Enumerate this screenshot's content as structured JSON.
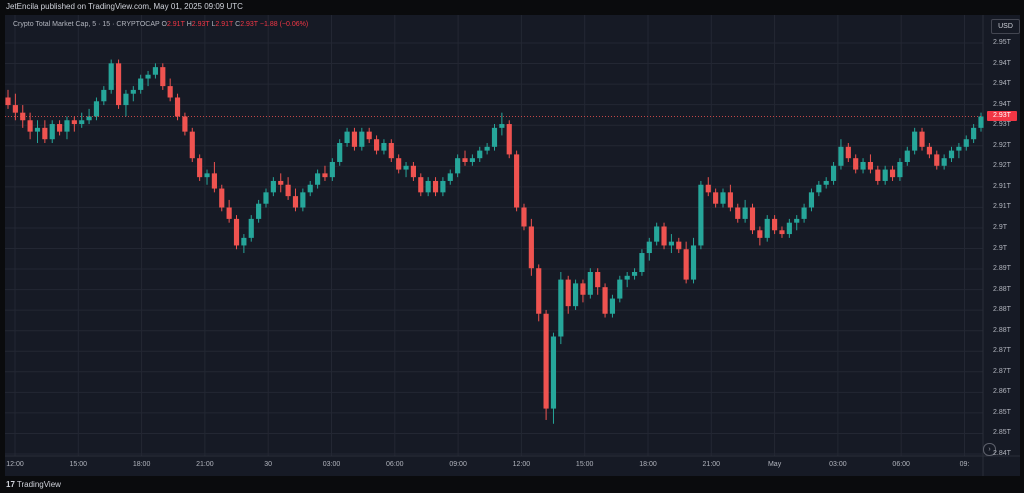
{
  "header": {
    "publish_text": "JetEncila published on TradingView.com, May 01, 2025 09:09 UTC"
  },
  "legend": {
    "symbol": "Crypto Total Market Cap, 5 · 15 · CRYPTOCAP",
    "open_label": "O",
    "open_value": "2.91T",
    "high_label": "H",
    "high_value": "2.93T",
    "low_label": "L",
    "low_value": "2.91T",
    "close_label": "C",
    "close_value": "2.93T",
    "change": "−1.88 (−0.06%)"
  },
  "currency_button": "USD",
  "current_price_label": "2.93T",
  "scroll_button_icon": "chevron-right-icon",
  "footer": {
    "logo_text": "TradingView",
    "logo_mark": "17"
  },
  "colors": {
    "background": "#161a25",
    "up": "#26a69a",
    "down": "#ef5350",
    "grid": "#232733",
    "text": "#b2b5be"
  },
  "chart_data": {
    "type": "candlestick",
    "y_tick_labels": [
      "2.95T",
      "2.94T",
      "2.94T",
      "2.94T",
      "2.93T",
      "2.92T",
      "2.92T",
      "2.91T",
      "2.91T",
      "2.9T",
      "2.9T",
      "2.89T",
      "2.88T",
      "2.88T",
      "2.88T",
      "2.87T",
      "2.87T",
      "2.86T",
      "2.85T",
      "2.85T",
      "2.84T"
    ],
    "x_tick_labels": [
      "12:00",
      "15:00",
      "18:00",
      "21:00",
      "30",
      "03:00",
      "06:00",
      "09:00",
      "12:00",
      "15:00",
      "18:00",
      "21:00",
      "May",
      "03:00",
      "06:00",
      "09:"
    ],
    "ylim": [
      2.8405,
      2.952
    ],
    "last_price": 2.93,
    "grid": true,
    "candles": [
      [
        2.935,
        2.937,
        2.932,
        2.933
      ],
      [
        2.933,
        2.936,
        2.929,
        2.931
      ],
      [
        2.931,
        2.933,
        2.927,
        2.929
      ],
      [
        2.929,
        2.931,
        2.924,
        2.926
      ],
      [
        2.926,
        2.929,
        2.923,
        2.927
      ],
      [
        2.927,
        2.929,
        2.923,
        2.924
      ],
      [
        2.924,
        2.929,
        2.923,
        2.928
      ],
      [
        2.928,
        2.929,
        2.925,
        2.926
      ],
      [
        2.926,
        2.93,
        2.924,
        2.929
      ],
      [
        2.929,
        2.93,
        2.926,
        2.928
      ],
      [
        2.928,
        2.931,
        2.927,
        2.929
      ],
      [
        2.929,
        2.932,
        2.928,
        2.93
      ],
      [
        2.93,
        2.935,
        2.929,
        2.934
      ],
      [
        2.934,
        2.938,
        2.933,
        2.937
      ],
      [
        2.937,
        2.945,
        2.936,
        2.944
      ],
      [
        2.944,
        2.945,
        2.932,
        2.933
      ],
      [
        2.933,
        2.937,
        2.93,
        2.936
      ],
      [
        2.936,
        2.938,
        2.934,
        2.937
      ],
      [
        2.937,
        2.941,
        2.936,
        2.94
      ],
      [
        2.94,
        2.942,
        2.938,
        2.941
      ],
      [
        2.941,
        2.944,
        2.94,
        2.943
      ],
      [
        2.943,
        2.944,
        2.937,
        2.938
      ],
      [
        2.938,
        2.94,
        2.934,
        2.935
      ],
      [
        2.935,
        2.936,
        2.929,
        2.93
      ],
      [
        2.93,
        2.931,
        2.925,
        2.926
      ],
      [
        2.926,
        2.927,
        2.918,
        2.919
      ],
      [
        2.919,
        2.92,
        2.913,
        2.914
      ],
      [
        2.914,
        2.916,
        2.912,
        2.915
      ],
      [
        2.915,
        2.918,
        2.91,
        2.911
      ],
      [
        2.911,
        2.912,
        2.905,
        2.906
      ],
      [
        2.906,
        2.908,
        2.902,
        2.903
      ],
      [
        2.903,
        2.904,
        2.895,
        2.896
      ],
      [
        2.896,
        2.899,
        2.894,
        2.898
      ],
      [
        2.898,
        2.904,
        2.897,
        2.903
      ],
      [
        2.903,
        2.908,
        2.902,
        2.907
      ],
      [
        2.907,
        2.911,
        2.906,
        2.91
      ],
      [
        2.91,
        2.914,
        2.909,
        2.913
      ],
      [
        2.913,
        2.915,
        2.91,
        2.912
      ],
      [
        2.912,
        2.914,
        2.908,
        2.909
      ],
      [
        2.909,
        2.911,
        2.905,
        2.906
      ],
      [
        2.906,
        2.911,
        2.905,
        2.91
      ],
      [
        2.91,
        2.913,
        2.909,
        2.912
      ],
      [
        2.912,
        2.916,
        2.911,
        2.915
      ],
      [
        2.915,
        2.917,
        2.913,
        2.914
      ],
      [
        2.914,
        2.919,
        2.913,
        2.918
      ],
      [
        2.918,
        2.924,
        2.917,
        2.923
      ],
      [
        2.923,
        2.927,
        2.922,
        2.926
      ],
      [
        2.926,
        2.927,
        2.921,
        2.922
      ],
      [
        2.922,
        2.927,
        2.921,
        2.926
      ],
      [
        2.926,
        2.927,
        2.923,
        2.924
      ],
      [
        2.924,
        2.925,
        2.92,
        2.921
      ],
      [
        2.921,
        2.924,
        2.92,
        2.923
      ],
      [
        2.923,
        2.924,
        2.918,
        2.919
      ],
      [
        2.919,
        2.92,
        2.915,
        2.916
      ],
      [
        2.916,
        2.918,
        2.914,
        2.917
      ],
      [
        2.917,
        2.918,
        2.913,
        2.914
      ],
      [
        2.914,
        2.915,
        2.909,
        2.91
      ],
      [
        2.91,
        2.914,
        2.909,
        2.913
      ],
      [
        2.913,
        2.914,
        2.909,
        2.91
      ],
      [
        2.91,
        2.914,
        2.909,
        2.913
      ],
      [
        2.913,
        2.916,
        2.912,
        2.915
      ],
      [
        2.915,
        2.92,
        2.914,
        2.919
      ],
      [
        2.919,
        2.921,
        2.917,
        2.918
      ],
      [
        2.918,
        2.92,
        2.917,
        2.919
      ],
      [
        2.919,
        2.922,
        2.918,
        2.921
      ],
      [
        2.921,
        2.923,
        2.92,
        2.922
      ],
      [
        2.922,
        2.928,
        2.921,
        2.927
      ],
      [
        2.927,
        2.931,
        2.925,
        2.928
      ],
      [
        2.928,
        2.929,
        2.919,
        2.92
      ],
      [
        2.92,
        2.921,
        2.905,
        2.906
      ],
      [
        2.906,
        2.907,
        2.9,
        2.901
      ],
      [
        2.901,
        2.903,
        2.888,
        2.89
      ],
      [
        2.89,
        2.891,
        2.876,
        2.878
      ],
      [
        2.878,
        2.879,
        2.85,
        2.853
      ],
      [
        2.853,
        2.873,
        2.849,
        2.872
      ],
      [
        2.872,
        2.889,
        2.87,
        2.887
      ],
      [
        2.887,
        2.888,
        2.878,
        2.88
      ],
      [
        2.88,
        2.887,
        2.879,
        2.886
      ],
      [
        2.886,
        2.887,
        2.881,
        2.883
      ],
      [
        2.883,
        2.89,
        2.882,
        2.889
      ],
      [
        2.889,
        2.89,
        2.883,
        2.885
      ],
      [
        2.885,
        2.886,
        2.877,
        2.878
      ],
      [
        2.878,
        2.883,
        2.877,
        2.882
      ],
      [
        2.882,
        2.888,
        2.881,
        2.887
      ],
      [
        2.887,
        2.889,
        2.885,
        2.888
      ],
      [
        2.888,
        2.89,
        2.887,
        2.889
      ],
      [
        2.889,
        2.895,
        2.888,
        2.894
      ],
      [
        2.894,
        2.898,
        2.892,
        2.897
      ],
      [
        2.897,
        2.902,
        2.896,
        2.901
      ],
      [
        2.901,
        2.902,
        2.895,
        2.896
      ],
      [
        2.896,
        2.899,
        2.894,
        2.897
      ],
      [
        2.897,
        2.898,
        2.894,
        2.895
      ],
      [
        2.895,
        2.897,
        2.886,
        2.887
      ],
      [
        2.887,
        2.898,
        2.886,
        2.896
      ],
      [
        2.896,
        2.913,
        2.895,
        2.912
      ],
      [
        2.912,
        2.914,
        2.909,
        2.91
      ],
      [
        2.91,
        2.911,
        2.906,
        2.907
      ],
      [
        2.907,
        2.911,
        2.906,
        2.91
      ],
      [
        2.91,
        2.912,
        2.905,
        2.906
      ],
      [
        2.906,
        2.907,
        2.902,
        2.903
      ],
      [
        2.903,
        2.908,
        2.902,
        2.906
      ],
      [
        2.906,
        2.907,
        2.899,
        2.9
      ],
      [
        2.9,
        2.901,
        2.896,
        2.898
      ],
      [
        2.898,
        2.904,
        2.897,
        2.903
      ],
      [
        2.903,
        2.904,
        2.899,
        2.9
      ],
      [
        2.9,
        2.901,
        2.898,
        2.899
      ],
      [
        2.899,
        2.903,
        2.898,
        2.902
      ],
      [
        2.902,
        2.904,
        2.9,
        2.903
      ],
      [
        2.903,
        2.907,
        2.902,
        2.906
      ],
      [
        2.906,
        2.911,
        2.905,
        2.91
      ],
      [
        2.91,
        2.913,
        2.909,
        2.912
      ],
      [
        2.912,
        2.914,
        2.911,
        2.913
      ],
      [
        2.913,
        2.918,
        2.912,
        2.917
      ],
      [
        2.917,
        2.924,
        2.916,
        2.922
      ],
      [
        2.922,
        2.923,
        2.918,
        2.919
      ],
      [
        2.919,
        2.92,
        2.915,
        2.916
      ],
      [
        2.916,
        2.919,
        2.915,
        2.918
      ],
      [
        2.918,
        2.92,
        2.915,
        2.916
      ],
      [
        2.916,
        2.917,
        2.912,
        2.913
      ],
      [
        2.913,
        2.917,
        2.912,
        2.916
      ],
      [
        2.916,
        2.917,
        2.913,
        2.914
      ],
      [
        2.914,
        2.919,
        2.913,
        2.918
      ],
      [
        2.918,
        2.922,
        2.917,
        2.921
      ],
      [
        2.921,
        2.927,
        2.92,
        2.926
      ],
      [
        2.926,
        2.927,
        2.921,
        2.922
      ],
      [
        2.922,
        2.923,
        2.919,
        2.92
      ],
      [
        2.92,
        2.921,
        2.916,
        2.917
      ],
      [
        2.917,
        2.92,
        2.916,
        2.919
      ],
      [
        2.919,
        2.922,
        2.918,
        2.921
      ],
      [
        2.921,
        2.923,
        2.919,
        2.922
      ],
      [
        2.922,
        2.925,
        2.921,
        2.924
      ],
      [
        2.924,
        2.928,
        2.923,
        2.927
      ],
      [
        2.927,
        2.931,
        2.926,
        2.93
      ]
    ]
  }
}
